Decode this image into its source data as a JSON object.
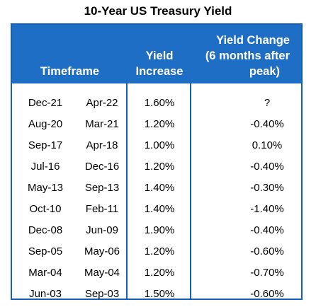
{
  "chart_data": {
    "type": "table",
    "title": "10-Year US Treasury Yield",
    "columns": [
      "Timeframe",
      "Yield Increase",
      "Yield Change (6 months after peak)"
    ],
    "headers": {
      "timeframe": "Timeframe",
      "yield_increase": [
        "Yield",
        "Increase"
      ],
      "yield_change": [
        "Yield Change",
        "(6 months after",
        "peak)"
      ]
    },
    "rows": [
      {
        "start": "Dec-21",
        "end": "Apr-22",
        "increase": "1.60%",
        "change": "?"
      },
      {
        "start": "Aug-20",
        "end": "Mar-21",
        "increase": "1.20%",
        "change": "-0.40%"
      },
      {
        "start": "Sep-17",
        "end": "Apr-18",
        "increase": "1.00%",
        "change": "0.10%"
      },
      {
        "start": "Jul-16",
        "end": "Dec-16",
        "increase": "1.20%",
        "change": "-0.40%"
      },
      {
        "start": "May-13",
        "end": "Sep-13",
        "increase": "1.40%",
        "change": "-0.30%"
      },
      {
        "start": "Oct-10",
        "end": "Feb-11",
        "increase": "1.40%",
        "change": "-1.40%"
      },
      {
        "start": "Dec-08",
        "end": "Jun-09",
        "increase": "1.90%",
        "change": "-0.40%"
      },
      {
        "start": "Sep-05",
        "end": "May-06",
        "increase": "1.20%",
        "change": "-0.60%"
      },
      {
        "start": "Mar-04",
        "end": "May-04",
        "increase": "1.20%",
        "change": "-0.70%"
      },
      {
        "start": "Jun-03",
        "end": "Sep-03",
        "increase": "1.50%",
        "change": "-0.60%"
      }
    ]
  },
  "colors": {
    "header_bg": "#1d6ec4",
    "border": "#1560b6"
  }
}
